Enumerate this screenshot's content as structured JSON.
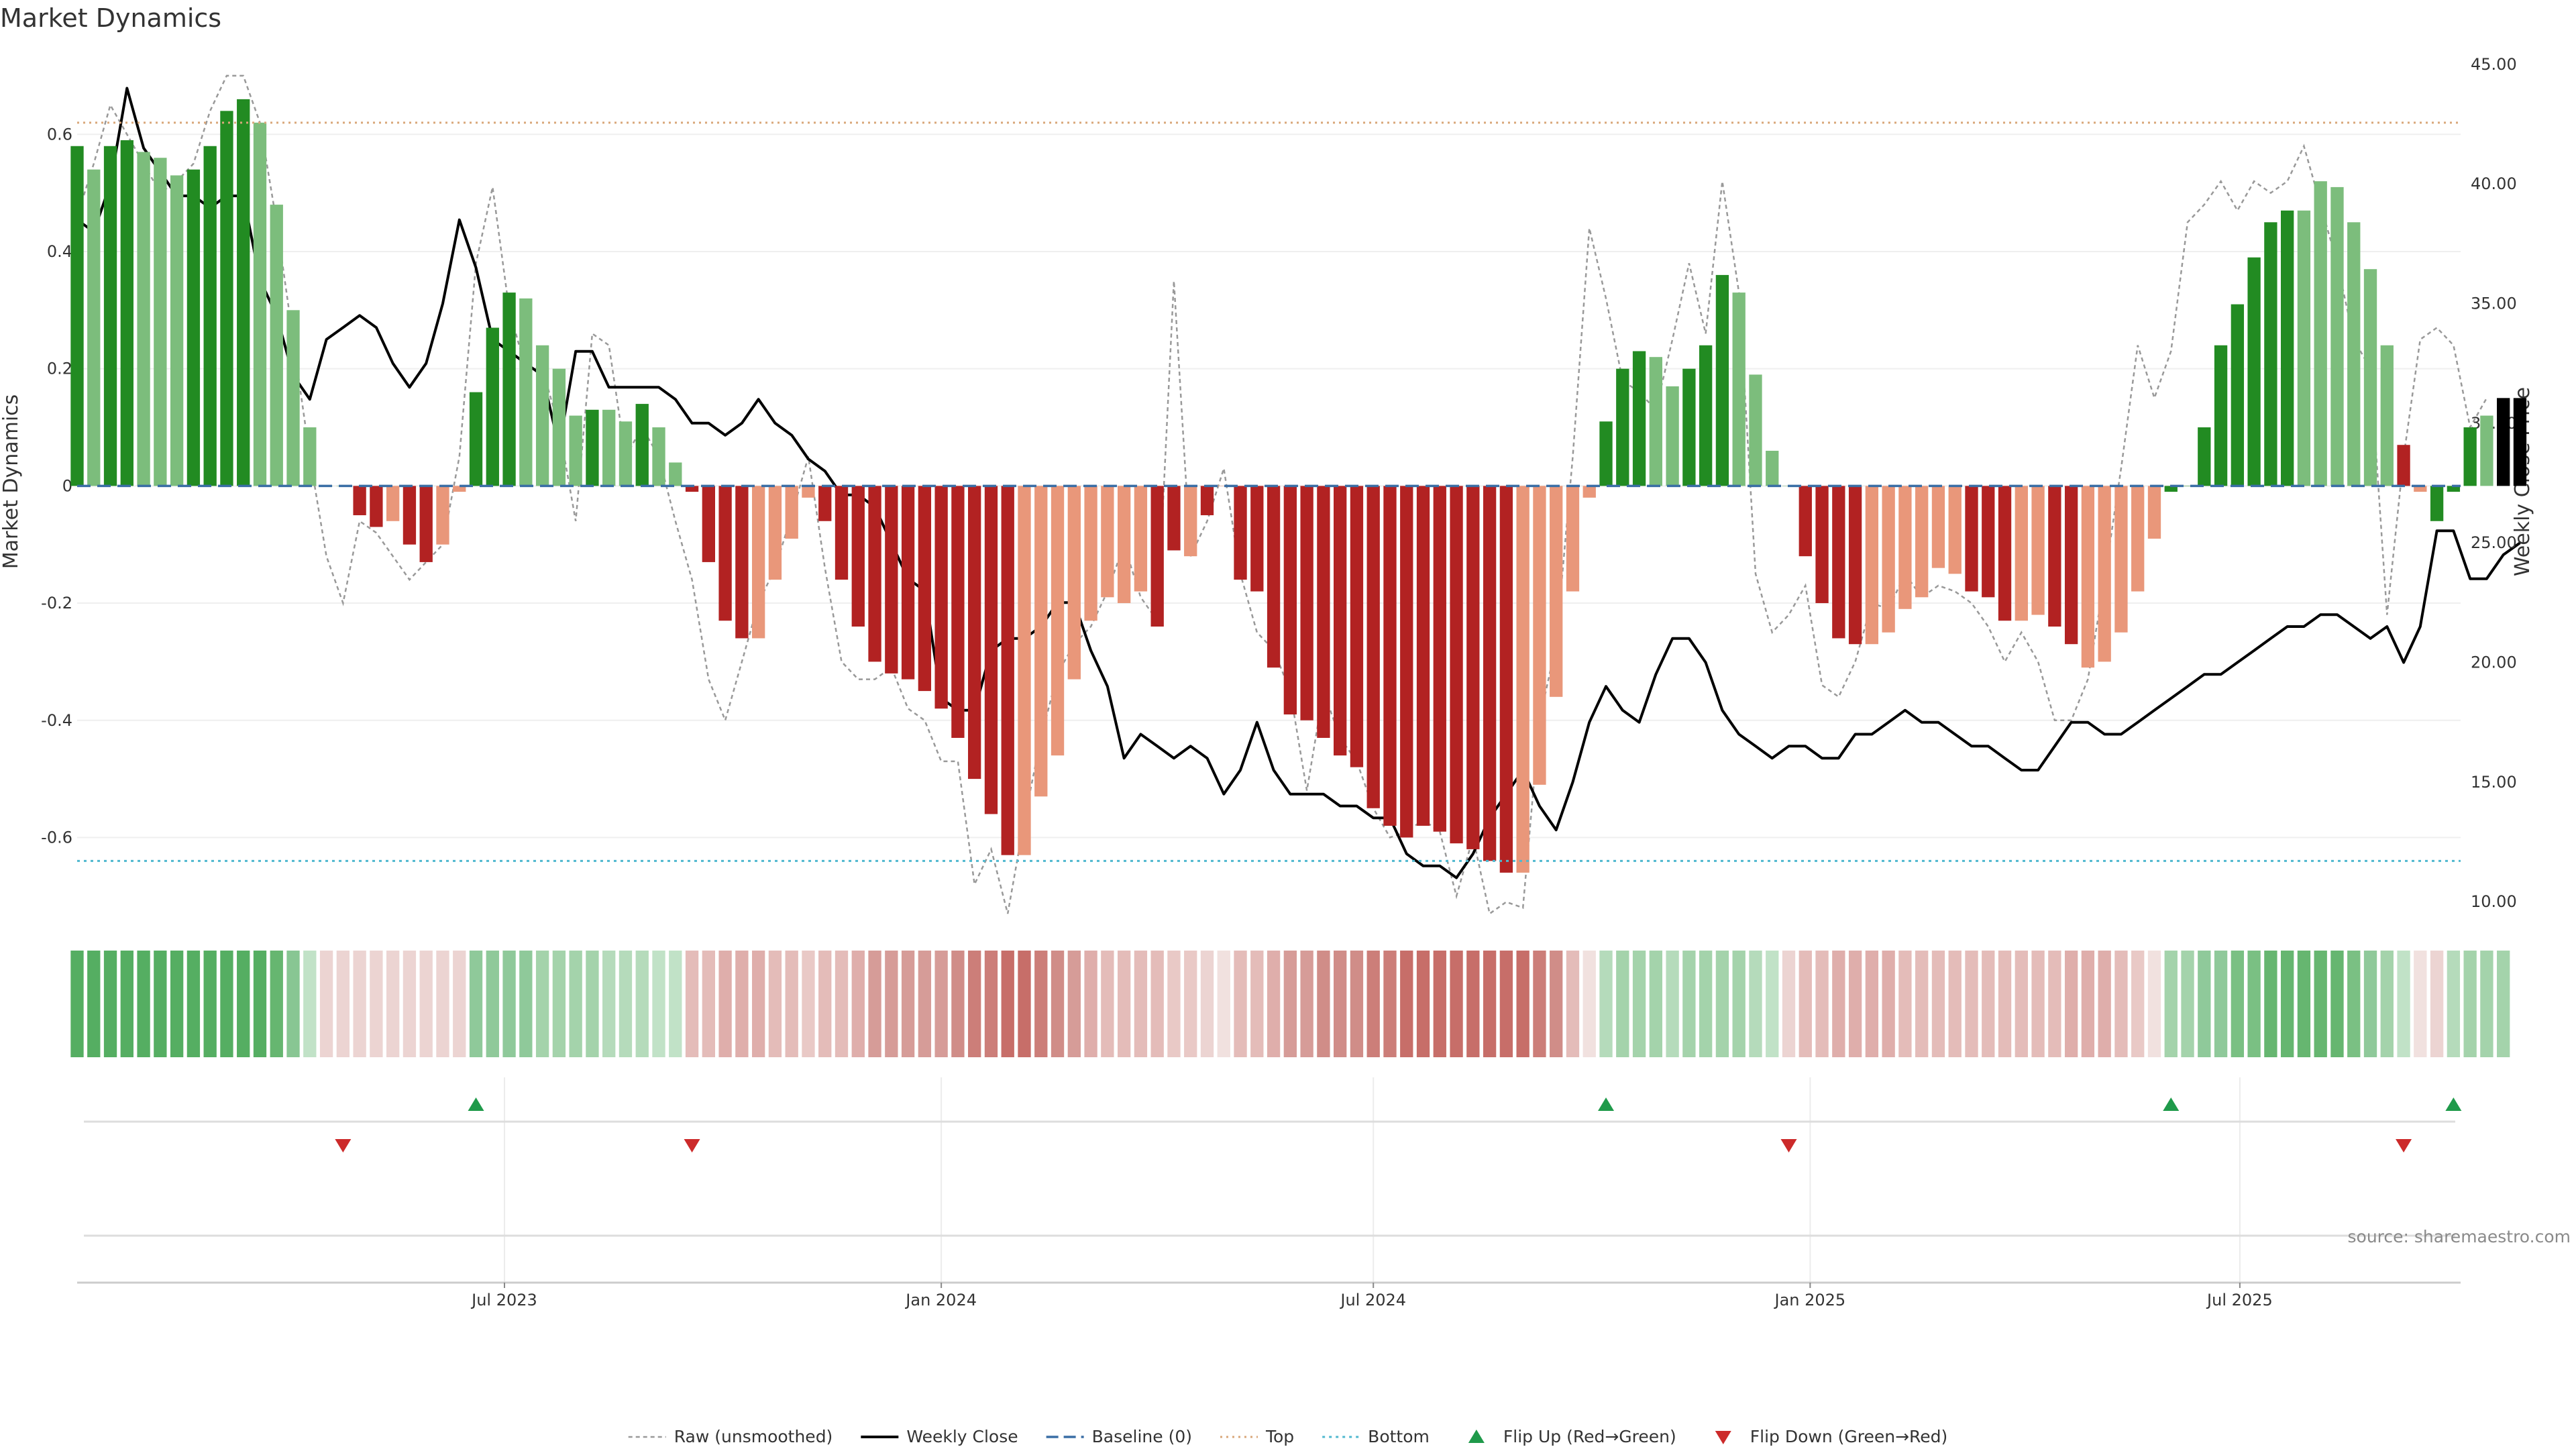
{
  "chart_data": {
    "type": "bar",
    "title": "Market Dynamics",
    "ylabel": "Market Dynamics",
    "y2label": "Weekly Close Price",
    "ylim": [
      -0.73,
      0.74
    ],
    "y2lim": [
      9.5,
      45.5
    ],
    "yticks": [
      -0.6,
      -0.4,
      -0.2,
      0,
      0.2,
      0.4,
      0.6
    ],
    "y2ticks": [
      "10.00",
      "15.00",
      "20.00",
      "25.00",
      "30.00",
      "35.00",
      "40.00",
      "45.00"
    ],
    "x_range": [
      "2023-01-02",
      "2025-10-02"
    ],
    "x_start": "2023-01-02",
    "x_step_days": 7,
    "xticks": [
      {
        "date": "2023-07-01",
        "label": "Jul 2023"
      },
      {
        "date": "2024-01-01",
        "label": "Jan 2024"
      },
      {
        "date": "2024-07-01",
        "label": "Jul 2024"
      },
      {
        "date": "2025-01-01",
        "label": "Jan 2025"
      },
      {
        "date": "2025-07-01",
        "label": "Jul 2025"
      }
    ],
    "top_level": 0.62,
    "bottom_level": -0.64,
    "baseline": 0,
    "grid": true,
    "legend_position": "bottom",
    "values": [
      0.58,
      0.54,
      0.58,
      0.59,
      0.57,
      0.56,
      0.53,
      0.54,
      0.58,
      0.64,
      0.66,
      0.62,
      0.48,
      0.3,
      0.1,
      0,
      0,
      -0.05,
      -0.07,
      -0.06,
      -0.1,
      -0.13,
      -0.1,
      -0.01,
      0.16,
      0.27,
      0.33,
      0.32,
      0.24,
      0.2,
      0.12,
      0.13,
      0.13,
      0.11,
      0.14,
      0.1,
      0.04,
      -0.01,
      -0.13,
      -0.23,
      -0.26,
      -0.26,
      -0.16,
      -0.09,
      -0.02,
      -0.06,
      -0.16,
      -0.24,
      -0.3,
      -0.32,
      -0.33,
      -0.35,
      -0.38,
      -0.43,
      -0.5,
      -0.56,
      -0.63,
      -0.63,
      -0.53,
      -0.46,
      -0.33,
      -0.23,
      -0.19,
      -0.2,
      -0.18,
      -0.24,
      -0.11,
      -0.12,
      -0.05,
      0,
      -0.16,
      -0.18,
      -0.31,
      -0.39,
      -0.4,
      -0.43,
      -0.46,
      -0.48,
      -0.55,
      -0.58,
      -0.6,
      -0.58,
      -0.59,
      -0.61,
      -0.62,
      -0.64,
      -0.66,
      -0.66,
      -0.51,
      -0.36,
      -0.18,
      -0.02,
      0.11,
      0.2,
      0.23,
      0.22,
      0.17,
      0.2,
      0.24,
      0.36,
      0.33,
      0.19,
      0.06,
      0,
      -0.12,
      -0.2,
      -0.26,
      -0.27,
      -0.27,
      -0.25,
      -0.21,
      -0.19,
      -0.14,
      -0.15,
      -0.18,
      -0.19,
      -0.23,
      -0.23,
      -0.22,
      -0.24,
      -0.27,
      -0.31,
      -0.3,
      -0.25,
      -0.18,
      -0.09,
      -0.01,
      0,
      0.1,
      0.24,
      0.31,
      0.39,
      0.45,
      0.47,
      0.47,
      0.52,
      0.51,
      0.45,
      0.37,
      0.24,
      0.07,
      -0.01,
      -0.06,
      -0.01,
      0.1,
      0.12,
      0.15,
      0.15
    ],
    "bar_colors": [
      "#228b22",
      "#7cbd7c",
      "#228b22",
      "#228b22",
      "#7cbd7c",
      "#7cbd7c",
      "#7cbd7c",
      "#228b22",
      "#228b22",
      "#228b22",
      "#228b22",
      "#7cbd7c",
      "#7cbd7c",
      "#7cbd7c",
      "#7cbd7c",
      "#7cbd7c",
      "#7cbd7c",
      "#b22222",
      "#b22222",
      "#e9977a",
      "#b22222",
      "#b22222",
      "#e9977a",
      "#e9977a",
      "#228b22",
      "#228b22",
      "#228b22",
      "#7cbd7c",
      "#7cbd7c",
      "#7cbd7c",
      "#7cbd7c",
      "#228b22",
      "#7cbd7c",
      "#7cbd7c",
      "#228b22",
      "#7cbd7c",
      "#7cbd7c",
      "#b22222",
      "#b22222",
      "#b22222",
      "#b22222",
      "#e9977a",
      "#e9977a",
      "#e9977a",
      "#e9977a",
      "#b22222",
      "#b22222",
      "#b22222",
      "#b22222",
      "#b22222",
      "#b22222",
      "#b22222",
      "#b22222",
      "#b22222",
      "#b22222",
      "#b22222",
      "#b22222",
      "#e9977a",
      "#e9977a",
      "#e9977a",
      "#e9977a",
      "#e9977a",
      "#e9977a",
      "#e9977a",
      "#e9977a",
      "#b22222",
      "#b22222",
      "#e9977a",
      "#b22222",
      "#e9977a",
      "#b22222",
      "#b22222",
      "#b22222",
      "#b22222",
      "#b22222",
      "#b22222",
      "#b22222",
      "#b22222",
      "#b22222",
      "#b22222",
      "#b22222",
      "#b22222",
      "#b22222",
      "#b22222",
      "#b22222",
      "#b22222",
      "#b22222",
      "#e9977a",
      "#e9977a",
      "#e9977a",
      "#e9977a",
      "#e9977a",
      "#228b22",
      "#228b22",
      "#228b22",
      "#7cbd7c",
      "#7cbd7c",
      "#228b22",
      "#228b22",
      "#228b22",
      "#7cbd7c",
      "#7cbd7c",
      "#7cbd7c",
      "#7cbd7c",
      "#b22222",
      "#b22222",
      "#b22222",
      "#b22222",
      "#e9977a",
      "#e9977a",
      "#e9977a",
      "#e9977a",
      "#e9977a",
      "#e9977a",
      "#b22222",
      "#b22222",
      "#b22222",
      "#e9977a",
      "#e9977a",
      "#b22222",
      "#b22222",
      "#e9977a",
      "#e9977a",
      "#e9977a",
      "#e9977a",
      "#e9977a",
      "#228b22",
      "#228b22",
      "#228b22",
      "#228b22",
      "#228b22",
      "#228b22",
      "#228b22",
      "#228b22",
      "#7cbd7c",
      "#7cbd7c",
      "#7cbd7c",
      "#7cbd7c",
      "#7cbd7c",
      "#7cbd7c",
      "#b22222",
      "#e9977a",
      "#228b22",
      "#228b22",
      "#228b22",
      "#7cbd7c"
    ],
    "raw_values": [
      0.46,
      0.55,
      0.65,
      0.6,
      0.55,
      0.5,
      0.52,
      0.55,
      0.64,
      0.7,
      0.7,
      0.62,
      0.45,
      0.25,
      0.05,
      -0.12,
      -0.2,
      -0.06,
      -0.08,
      -0.12,
      -0.16,
      -0.13,
      -0.1,
      0.05,
      0.38,
      0.51,
      0.3,
      0.2,
      0.2,
      0.1,
      -0.06,
      0.26,
      0.24,
      0.05,
      0.1,
      0.05,
      -0.06,
      -0.16,
      -0.33,
      -0.4,
      -0.3,
      -0.2,
      -0.14,
      -0.05,
      0.05,
      -0.14,
      -0.3,
      -0.33,
      -0.33,
      -0.31,
      -0.38,
      -0.4,
      -0.47,
      -0.47,
      -0.68,
      -0.62,
      -0.73,
      -0.57,
      -0.43,
      -0.32,
      -0.27,
      -0.24,
      -0.18,
      -0.1,
      -0.19,
      -0.23,
      0.35,
      -0.12,
      -0.06,
      0.03,
      -0.15,
      -0.25,
      -0.28,
      -0.35,
      -0.52,
      -0.35,
      -0.43,
      -0.47,
      -0.55,
      -0.6,
      -0.59,
      -0.57,
      -0.59,
      -0.7,
      -0.6,
      -0.73,
      -0.71,
      -0.72,
      -0.4,
      -0.27,
      0.05,
      0.44,
      0.32,
      0.18,
      0.16,
      0.13,
      0.25,
      0.38,
      0.26,
      0.52,
      0.33,
      -0.15,
      -0.25,
      -0.22,
      -0.17,
      -0.34,
      -0.36,
      -0.3,
      -0.2,
      -0.21,
      -0.15,
      -0.19,
      -0.17,
      -0.18,
      -0.2,
      -0.24,
      -0.3,
      -0.25,
      -0.3,
      -0.4,
      -0.4,
      -0.33,
      -0.16,
      0.03,
      0.24,
      0.15,
      0.23,
      0.45,
      0.48,
      0.52,
      0.47,
      0.52,
      0.5,
      0.52,
      0.58,
      0.48,
      0.38,
      0.25,
      0.2,
      -0.22,
      0.05,
      0.25,
      0.27,
      0.24,
      0.1,
      0.15
    ]
  },
  "price_data": {
    "name": "Weekly Close",
    "values": [
      38.5,
      38,
      40,
      44,
      41.5,
      40.5,
      39.5,
      39.5,
      39,
      39.5,
      39.5,
      36,
      34.5,
      32,
      31,
      33.5,
      34,
      34.5,
      34,
      32.5,
      31.5,
      32.5,
      35,
      38.5,
      36.5,
      33.5,
      33,
      32.5,
      32,
      29,
      33,
      33,
      31.5,
      31.5,
      31.5,
      31.5,
      31,
      30,
      30,
      29.5,
      30,
      31,
      30,
      29.5,
      28.5,
      28,
      27,
      27,
      26.5,
      25,
      23.5,
      23,
      18.5,
      18,
      18,
      20.5,
      21,
      21,
      21.5,
      22.5,
      22.5,
      20.5,
      19,
      16,
      17,
      16.5,
      16,
      16.5,
      16,
      14.5,
      15.5,
      17.5,
      15.5,
      14.5,
      14.5,
      14.5,
      14,
      14,
      13.5,
      13.5,
      12,
      11.5,
      11.5,
      11,
      12,
      13.5,
      14.5,
      15.5,
      14,
      13,
      15,
      17.5,
      19,
      18,
      17.5,
      19.5,
      21,
      21,
      20,
      18,
      17,
      16.5,
      16,
      16.5,
      16.5,
      16,
      16,
      17,
      17,
      17.5,
      18,
      17.5,
      17.5,
      17,
      16.5,
      16.5,
      16,
      15.5,
      15.5,
      16.5,
      17.5,
      17.5,
      17,
      17,
      17.5,
      18,
      18.5,
      19,
      19.5,
      19.5,
      20,
      20.5,
      21,
      21.5,
      21.5,
      22,
      22,
      21.5,
      21,
      21.5,
      20,
      21.5,
      25.5,
      25.5,
      23.5,
      23.5,
      24.5,
      25
    ]
  },
  "heat_strip": {
    "colors": [
      "#55ae62",
      "#55ae62",
      "#55ae62",
      "#55ae62",
      "#55ae62",
      "#55ae62",
      "#55ae62",
      "#55ae62",
      "#55ae62",
      "#55ae62",
      "#55ae62",
      "#55ae62",
      "#66b670",
      "#88c693",
      "#c1e2c7",
      "#ecd4d2",
      "#ecd4d2",
      "#ecd4d2",
      "#ecd4d2",
      "#ecd4d2",
      "#ecd4d2",
      "#ecd4d2",
      "#ecd4d2",
      "#ecd4d2",
      "#8fc99a",
      "#8fc99a",
      "#8fc99a",
      "#8fc99a",
      "#a4d3ab",
      "#a4d3ab",
      "#a4d3ab",
      "#a4d3ab",
      "#b5dbbb",
      "#b5dbbb",
      "#b5dbbb",
      "#c1e2c7",
      "#c1e2c7",
      "#e4bcb9",
      "#e4bcb9",
      "#dfaeab",
      "#dfaeab",
      "#dfaeab",
      "#e4bcb9",
      "#e4bcb9",
      "#e9c9c6",
      "#e4bcb9",
      "#e4bcb9",
      "#dfaeab",
      "#d69c98",
      "#d69c98",
      "#d69c98",
      "#d69c98",
      "#d69c98",
      "#d08d88",
      "#cc7e79",
      "#cc7e79",
      "#c76e69",
      "#c76e69",
      "#cc7e79",
      "#d08d88",
      "#d69c98",
      "#dfaeab",
      "#e4bcb9",
      "#e4bcb9",
      "#e4bcb9",
      "#e4bcb9",
      "#e9c9c6",
      "#e9c9c6",
      "#ecd4d2",
      "#f1e1df",
      "#e4bcb9",
      "#e4bcb9",
      "#dfaeab",
      "#d69c98",
      "#d69c98",
      "#d08d88",
      "#d08d88",
      "#d08d88",
      "#cc7e79",
      "#cc7e79",
      "#c76e69",
      "#c76e69",
      "#c76e69",
      "#c76e69",
      "#c76e69",
      "#c76e69",
      "#c76e69",
      "#c76e69",
      "#cc7e79",
      "#d08d88",
      "#e4bcb9",
      "#f1e1df",
      "#b5dbbb",
      "#a4d3ab",
      "#a4d3ab",
      "#a4d3ab",
      "#b5dbbb",
      "#a4d3ab",
      "#a4d3ab",
      "#a4d3ab",
      "#a4d3ab",
      "#b5dbbb",
      "#c1e2c7",
      "#ecd4d2",
      "#e4bcb9",
      "#e4bcb9",
      "#dfaeab",
      "#dfaeab",
      "#dfaeab",
      "#dfaeab",
      "#e4bcb9",
      "#e4bcb9",
      "#e4bcb9",
      "#e4bcb9",
      "#e4bcb9",
      "#e4bcb9",
      "#e4bcb9",
      "#e4bcb9",
      "#e4bcb9",
      "#e4bcb9",
      "#dfaeab",
      "#dfaeab",
      "#dfaeab",
      "#e4bcb9",
      "#e9c9c6",
      "#f1e1df",
      "#a4d3ab",
      "#a4d3ab",
      "#8fc99a",
      "#8fc99a",
      "#7ac083",
      "#7ac083",
      "#66b670",
      "#66b670",
      "#66b670",
      "#66b670",
      "#66b670",
      "#7ac083",
      "#8fc99a",
      "#a4d3ab",
      "#c1e2c7",
      "#f1e1df",
      "#ecd4d2",
      "#b5dbbb",
      "#a4d3ab",
      "#a4d3ab",
      "#a4d3ab"
    ]
  },
  "flips": {
    "up_indices": [
      24,
      92,
      126,
      143
    ],
    "down_indices": [
      16,
      37,
      103,
      140
    ],
    "up_color": "#1f9a4a",
    "down_color": "#cc2a2a"
  },
  "colors": {
    "strong_green": "#228b22",
    "light_green": "#7cbd7c",
    "strong_red": "#b22222",
    "light_red": "#e9977a",
    "top_line": "#d9a77a",
    "bottom_line": "#4fb8cf",
    "baseline": "#3a6ea5",
    "raw_line": "#999999",
    "close_line": "#000000"
  },
  "legend": [
    {
      "label": "Raw (unsmoothed)",
      "kind": "raw"
    },
    {
      "label": "Weekly Close",
      "kind": "close"
    },
    {
      "label": "Baseline (0)",
      "kind": "baseline"
    },
    {
      "label": "Top",
      "kind": "top"
    },
    {
      "label": "Bottom",
      "kind": "bottom"
    },
    {
      "label": "Flip Up (Red→Green)",
      "kind": "flipup"
    },
    {
      "label": "Flip Down (Green→Red)",
      "kind": "flipdown"
    }
  ],
  "source_text": "source: sharemaestro.com"
}
